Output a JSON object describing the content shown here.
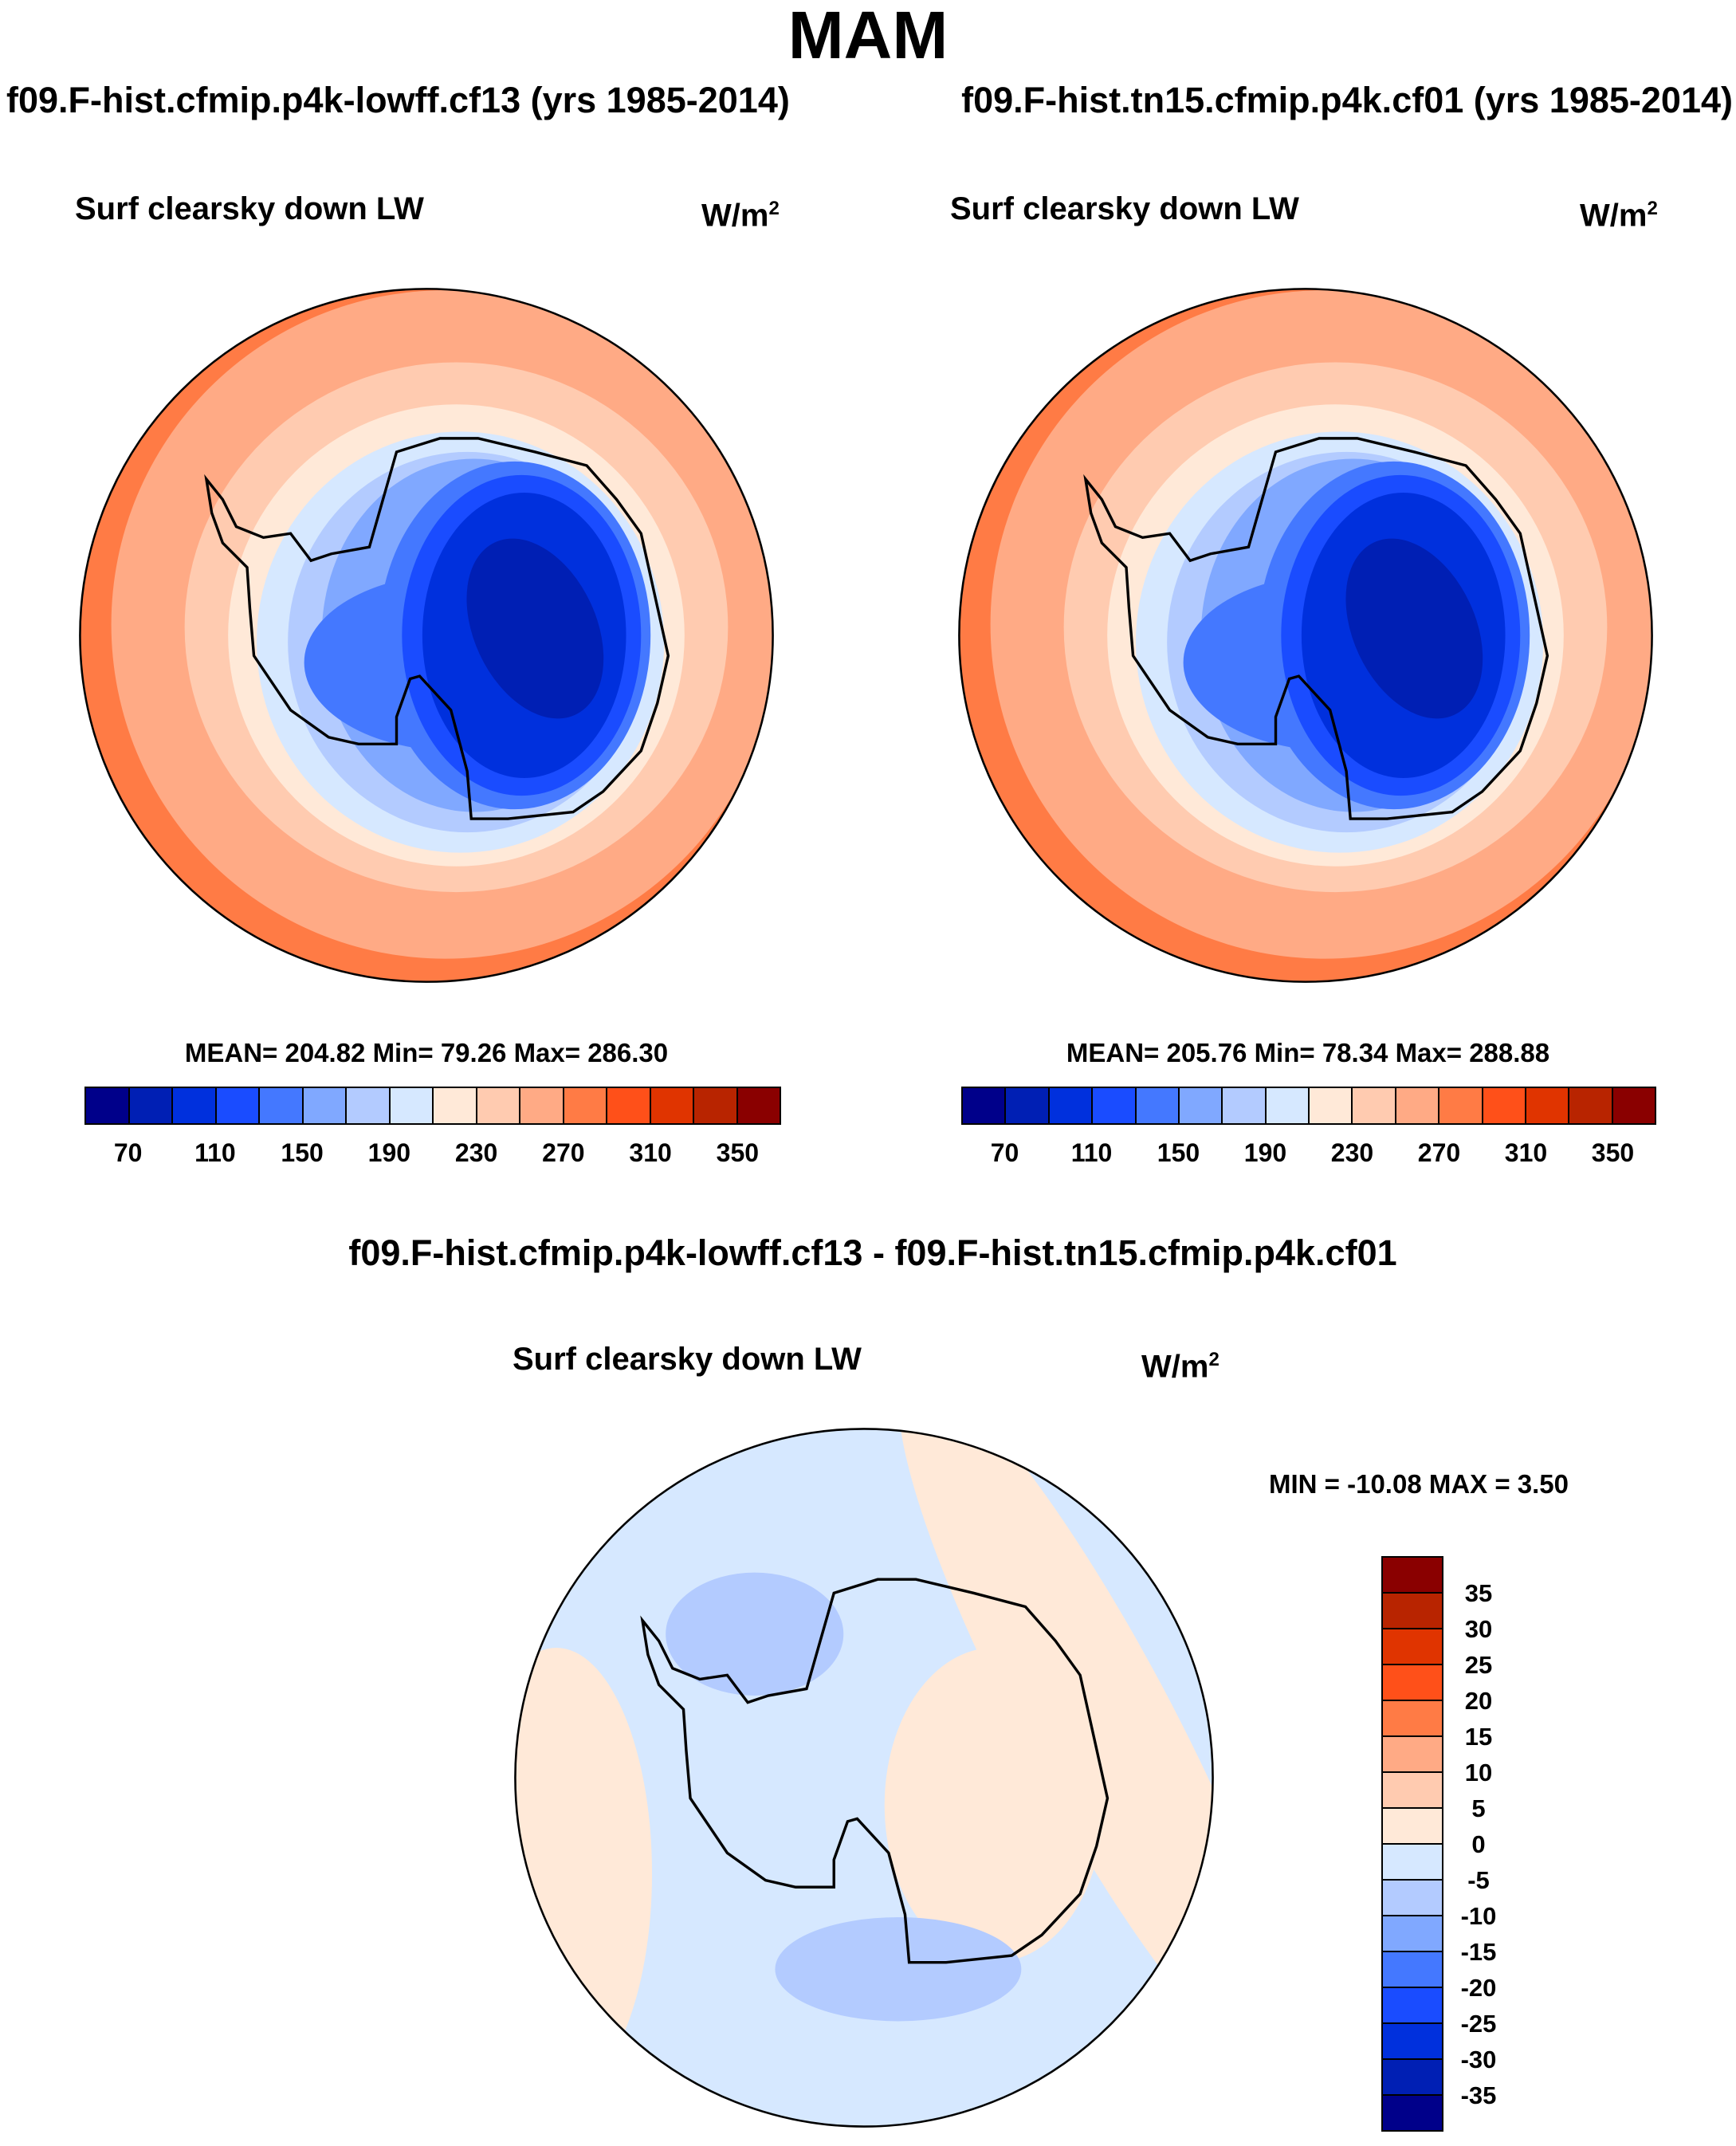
{
  "title": "MAM",
  "chart_data": {
    "type": "heatmap",
    "panels": [
      {
        "case": "f09.F-hist.cfmip.p4k-lowff.cf13 (yrs 1985-2014)",
        "title": "Surf clearsky down LW",
        "units": "W/m",
        "units_sup": "2",
        "stats": "MEAN= 204.82  Min=  79.26  Max= 286.30",
        "mean": 204.82,
        "min": 79.26,
        "max": 286.3
      },
      {
        "case": "f09.F-hist.tn15.cfmip.p4k.cf01 (yrs 1985-2014)",
        "title": "Surf clearsky down LW",
        "units": "W/m",
        "units_sup": "2",
        "stats": "MEAN= 205.76  Min=  78.34  Max= 288.88",
        "mean": 205.76,
        "min": 78.34,
        "max": 288.88
      },
      {
        "case": "f09.F-hist.cfmip.p4k-lowff.cf13 - f09.F-hist.tn15.cfmip.p4k.cf01",
        "title": "Surf clearsky down LW",
        "units": "W/m",
        "units_sup": "2",
        "stats": "MIN = -10.08 MAX =   3.50",
        "min": -10.08,
        "max": 3.5
      }
    ],
    "colorbar_abs": {
      "labels": [
        "70",
        "110",
        "150",
        "190",
        "230",
        "270",
        "310",
        "350"
      ],
      "levels": [
        70,
        90,
        110,
        130,
        150,
        170,
        190,
        210,
        230,
        250,
        270,
        290,
        310,
        330,
        350
      ]
    },
    "colorbar_diff": {
      "labels": [
        "35",
        "30",
        "25",
        "20",
        "15",
        "10",
        "5",
        "0",
        "-5",
        "-10",
        "-15",
        "-20",
        "-25",
        "-30",
        "-35"
      ],
      "levels": [
        -35,
        -30,
        -25,
        -20,
        -15,
        -10,
        -5,
        0,
        5,
        10,
        15,
        20,
        25,
        30,
        35
      ]
    },
    "colors": [
      "#00008a",
      "#001fb4",
      "#0030dd",
      "#1a4cff",
      "#4478ff",
      "#80a8ff",
      "#b3cbff",
      "#d6e8ff",
      "#ffe9d8",
      "#ffcbb0",
      "#ffaa85",
      "#ff7b45",
      "#ff5019",
      "#e03400",
      "#b82400",
      "#8a0000"
    ]
  }
}
